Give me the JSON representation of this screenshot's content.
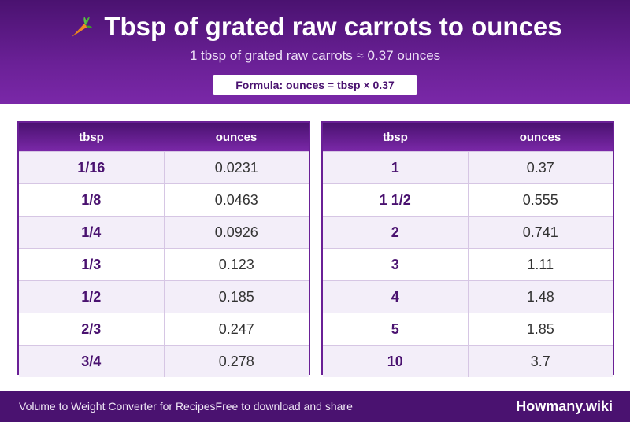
{
  "header": {
    "title": "Tbsp of grated raw carrots to ounces",
    "title_icon": "carrot-icon",
    "subtitle": "1 tbsp of grated raw carrots ≈ 0.37 ounces",
    "formula": "Formula: ounces = tbsp × 0.37"
  },
  "tables": {
    "left": {
      "col1": "tbsp",
      "col2": "ounces",
      "rows": [
        {
          "tbsp": "1/16",
          "ounces": "0.0231"
        },
        {
          "tbsp": "1/8",
          "ounces": "0.0463"
        },
        {
          "tbsp": "1/4",
          "ounces": "0.0926"
        },
        {
          "tbsp": "1/3",
          "ounces": "0.123"
        },
        {
          "tbsp": "1/2",
          "ounces": "0.185"
        },
        {
          "tbsp": "2/3",
          "ounces": "0.247"
        },
        {
          "tbsp": "3/4",
          "ounces": "0.278"
        }
      ]
    },
    "right": {
      "col1": "tbsp",
      "col2": "ounces",
      "rows": [
        {
          "tbsp": "1",
          "ounces": "0.37"
        },
        {
          "tbsp": "1 1/2",
          "ounces": "0.555"
        },
        {
          "tbsp": "2",
          "ounces": "0.741"
        },
        {
          "tbsp": "3",
          "ounces": "1.11"
        },
        {
          "tbsp": "4",
          "ounces": "1.48"
        },
        {
          "tbsp": "5",
          "ounces": "1.85"
        },
        {
          "tbsp": "10",
          "ounces": "3.7"
        }
      ]
    }
  },
  "footer": {
    "left_text": "Volume to Weight Converter for Recipes",
    "middle_text": "Free to download and share",
    "brand": "Howmany.wiki"
  },
  "colors": {
    "primary": "#4a1270",
    "accent": "#7a28a8",
    "row_alt": "#f3eef9"
  }
}
